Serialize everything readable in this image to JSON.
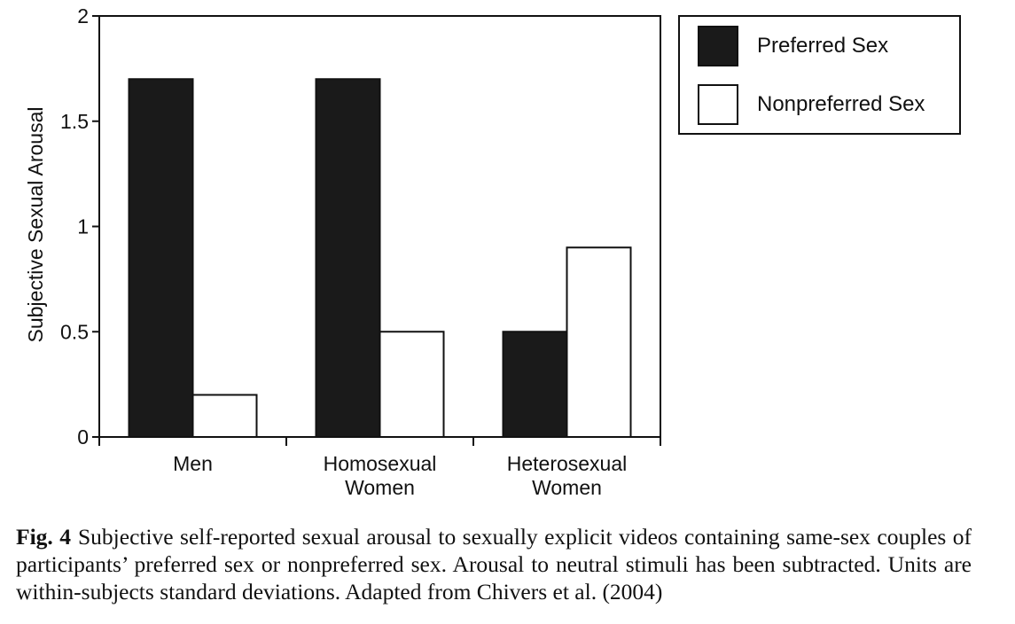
{
  "chart_data": {
    "type": "bar",
    "title": "",
    "xlabel": "",
    "ylabel": "Subjective Sexual Arousal",
    "ylim": [
      0,
      2
    ],
    "yticks": [
      0,
      0.5,
      1,
      1.5,
      2
    ],
    "ytick_labels": [
      "0",
      "0.5",
      "1",
      "1.5",
      "2"
    ],
    "categories": [
      [
        "Men"
      ],
      [
        "Homosexual",
        "Women"
      ],
      [
        "Heterosexual",
        "Women"
      ]
    ],
    "series": [
      {
        "name": "Preferred Sex",
        "fill": "#1a1a1a",
        "values": [
          1.7,
          1.7,
          0.5
        ]
      },
      {
        "name": "Nonpreferred Sex",
        "fill": "#ffffff",
        "values": [
          0.2,
          0.5,
          0.9
        ]
      }
    ],
    "legend_position": "top-right-outside",
    "grid": false
  },
  "caption": {
    "label": "Fig. 4",
    "text": "Subjective self-reported sexual arousal to sexually explicit videos containing same-sex couples of participants’ preferred sex or nonpreferred sex. Arousal to neutral stimuli has been subtracted. Units are within-subjects standard deviations. Adapted from Chivers et al. (2004)"
  }
}
